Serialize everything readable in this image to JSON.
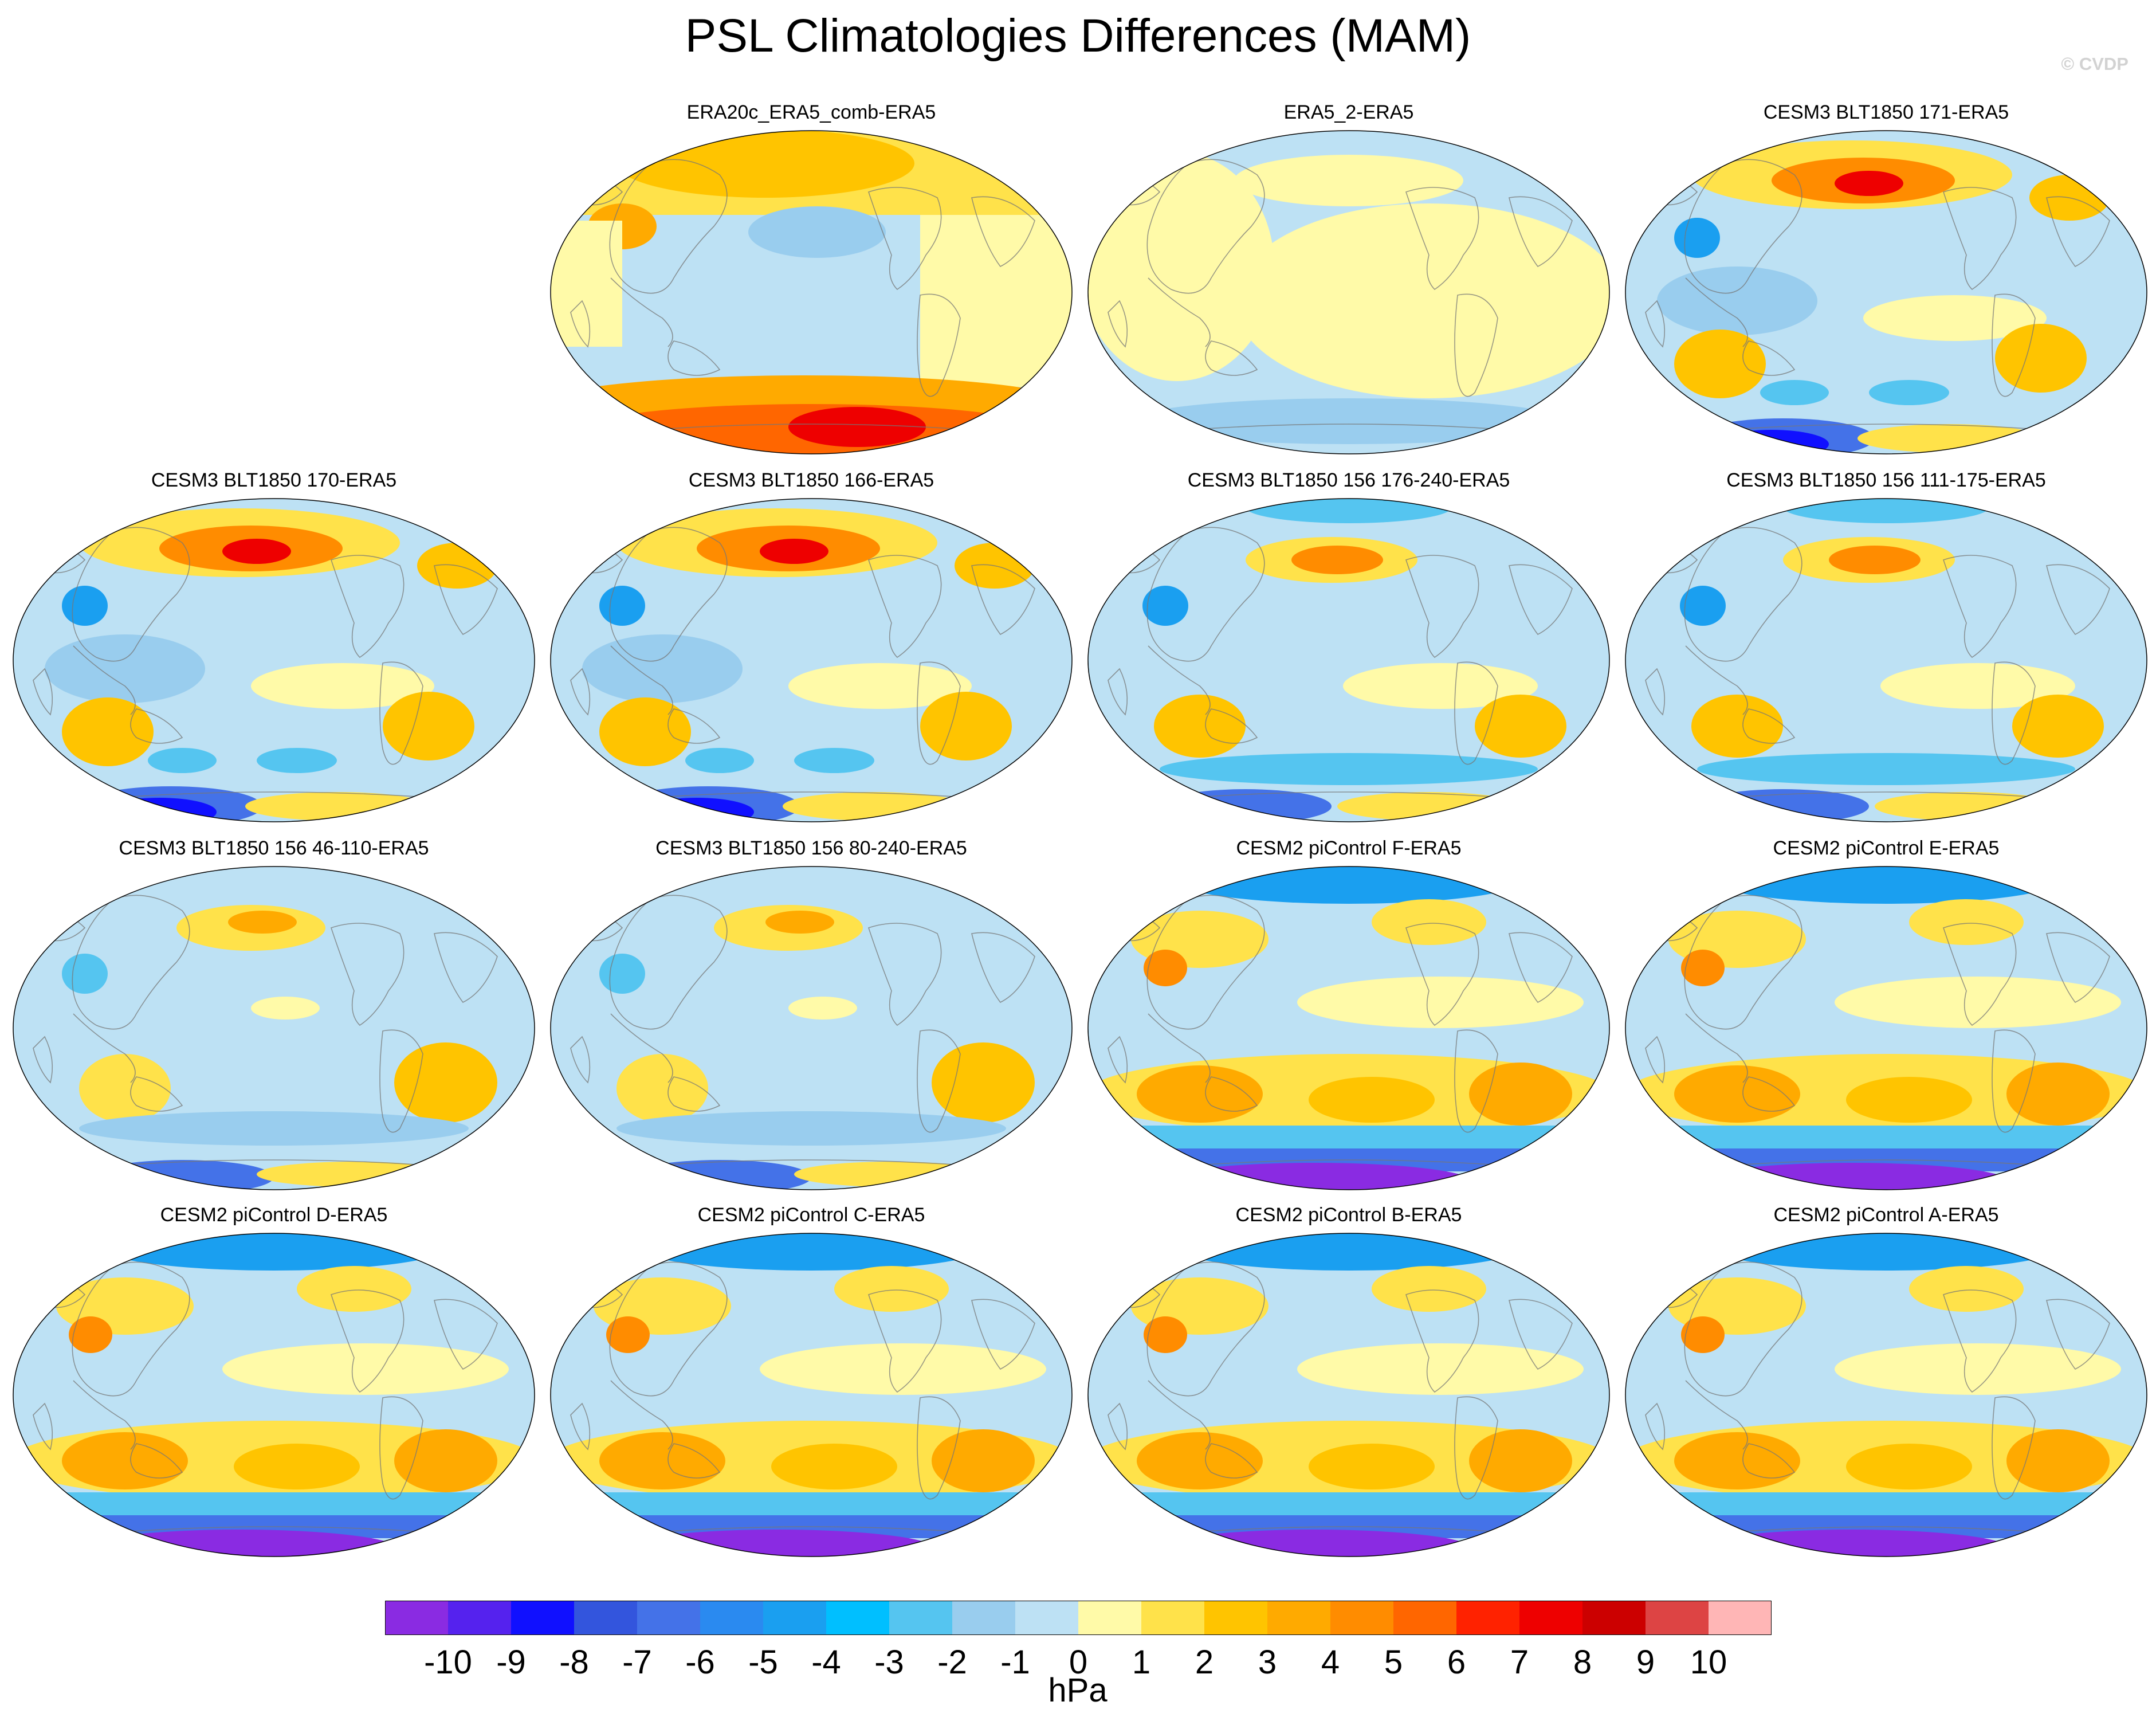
{
  "title": "PSL Climatologies Differences (MAM)",
  "watermark": "© CVDP",
  "panels": [
    {
      "title": "ERA20c_ERA5_comb-ERA5",
      "style": "reanalysis_a"
    },
    {
      "title": "ERA5_2-ERA5",
      "style": "reanalysis_b"
    },
    {
      "title": "CESM3 BLT1850 171-ERA5",
      "style": "cesm3_strong"
    },
    {
      "title": "CESM3 BLT1850 170-ERA5",
      "style": "cesm3_strong"
    },
    {
      "title": "CESM3 BLT1850 166-ERA5",
      "style": "cesm3_strong"
    },
    {
      "title": "CESM3 BLT1850 156 176-240-ERA5",
      "style": "cesm3_mid"
    },
    {
      "title": "CESM3 BLT1850 156 111-175-ERA5",
      "style": "cesm3_mid"
    },
    {
      "title": "CESM3 BLT1850 156 46-110-ERA5",
      "style": "cesm3_weak"
    },
    {
      "title": "CESM3 BLT1850 156 80-240-ERA5",
      "style": "cesm3_weak"
    },
    {
      "title": "CESM2 piControl F-ERA5",
      "style": "cesm2"
    },
    {
      "title": "CESM2 piControl E-ERA5",
      "style": "cesm2"
    },
    {
      "title": "CESM2 piControl D-ERA5",
      "style": "cesm2"
    },
    {
      "title": "CESM2 piControl C-ERA5",
      "style": "cesm2"
    },
    {
      "title": "CESM2 piControl B-ERA5",
      "style": "cesm2"
    },
    {
      "title": "CESM2 piControl A-ERA5",
      "style": "cesm2"
    }
  ],
  "colorbar": {
    "labels": [
      "-10",
      "-9",
      "-8",
      "-7",
      "-6",
      "-5",
      "-4",
      "-3",
      "-2",
      "-1",
      "0",
      "1",
      "2",
      "3",
      "4",
      "5",
      "6",
      "7",
      "8",
      "9",
      "10"
    ],
    "colors": [
      "#8a2be2",
      "#5522ee",
      "#1010ff",
      "#3355dd",
      "#4472e8",
      "#2a8af0",
      "#1a9ff0",
      "#00bfff",
      "#55c5f0",
      "#99cdee",
      "#bde1f4",
      "#fffaa8",
      "#ffe24a",
      "#ffc400",
      "#ffaa00",
      "#ff8c00",
      "#ff6600",
      "#ff2200",
      "#ee0000",
      "#cc0000",
      "#dd4444",
      "#ffb6b6"
    ],
    "units": "hPa"
  },
  "palette": {
    "ocean": "#bde1f4",
    "land_line": "#777777",
    "neg1": "#99cdee",
    "neg2": "#55c5f0",
    "neg3": "#1a9ff0",
    "neg5": "#4472e8",
    "neg7": "#1010ff",
    "neg9": "#8a2be2",
    "pos1": "#fffaa8",
    "pos2": "#ffe24a",
    "pos3": "#ffc400",
    "pos4": "#ffaa00",
    "pos5": "#ff8c00",
    "pos6": "#ff6600",
    "pos8": "#ee0000"
  }
}
